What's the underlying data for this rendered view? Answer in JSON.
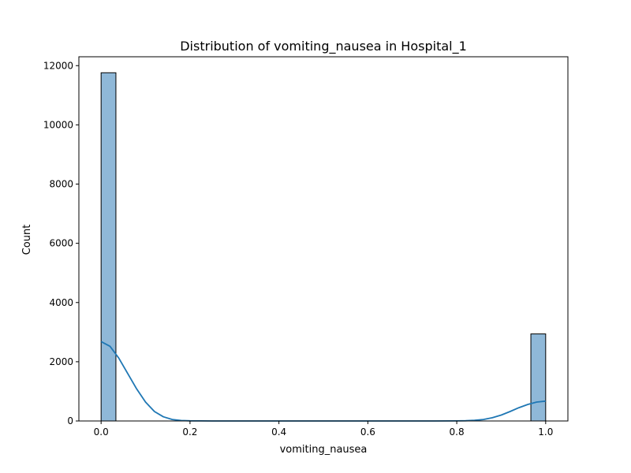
{
  "chart_data": {
    "type": "bar",
    "title": "Distribution of vomiting_nausea in Hospital_1",
    "xlabel": "vomiting_nausea",
    "ylabel": "Count",
    "xlim": [
      -0.05,
      1.05
    ],
    "ylim": [
      0,
      12300
    ],
    "x_ticks": [
      0.0,
      0.2,
      0.4,
      0.6,
      0.8,
      1.0
    ],
    "x_tick_labels": [
      "0.0",
      "0.2",
      "0.4",
      "0.6",
      "0.8",
      "1.0"
    ],
    "y_ticks": [
      0,
      2000,
      4000,
      6000,
      8000,
      10000,
      12000
    ],
    "y_tick_labels": [
      "0",
      "2000",
      "4000",
      "6000",
      "8000",
      "10000",
      "12000"
    ],
    "bins": [
      {
        "x0": 0.0,
        "x1": 0.0333,
        "count": 11760
      },
      {
        "x0": 0.9667,
        "x1": 1.0,
        "count": 2940
      }
    ],
    "kde": {
      "x": [
        0.0,
        0.02,
        0.04,
        0.06,
        0.08,
        0.1,
        0.12,
        0.14,
        0.16,
        0.18,
        0.2,
        0.25,
        0.3,
        0.4,
        0.5,
        0.6,
        0.7,
        0.75,
        0.8,
        0.82,
        0.84,
        0.86,
        0.88,
        0.9,
        0.92,
        0.94,
        0.96,
        0.98,
        1.0
      ],
      "y": [
        2680,
        2520,
        2120,
        1600,
        1080,
        640,
        320,
        140,
        50,
        15,
        5,
        1,
        0,
        0,
        0,
        0,
        0,
        1,
        3,
        8,
        20,
        50,
        110,
        200,
        320,
        450,
        560,
        640,
        670
      ]
    },
    "colors": {
      "bar_fill": "#8fb8d8",
      "bar_edge": "#000000",
      "kde_line": "#1f77b4"
    },
    "grid": false,
    "legend": "none"
  }
}
